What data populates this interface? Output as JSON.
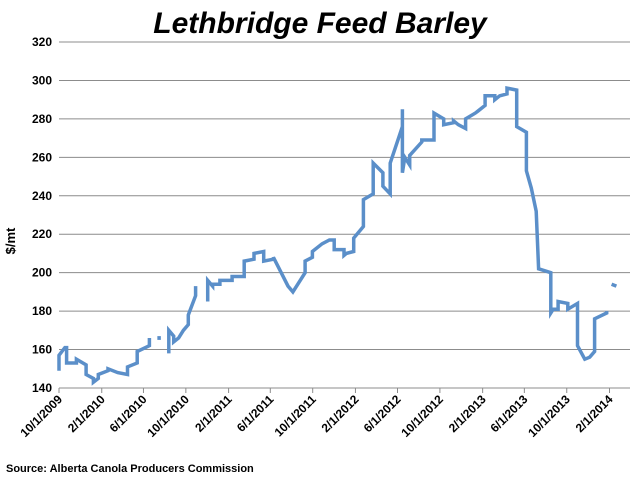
{
  "chart_data": {
    "type": "line",
    "title": "Lethbridge Feed Barley",
    "xlabel": "",
    "ylabel": "$/mt",
    "ylim": [
      140,
      320
    ],
    "yticks": [
      140,
      160,
      180,
      200,
      220,
      240,
      260,
      280,
      300,
      320
    ],
    "xlim": [
      "2009-10-01",
      "2014-04-01"
    ],
    "xticks": [
      {
        "label": "10/1/2009",
        "date": "2009-10-01"
      },
      {
        "label": "2/1/2010",
        "date": "2010-02-01"
      },
      {
        "label": "6/1/2010",
        "date": "2010-06-01"
      },
      {
        "label": "10/1/2010",
        "date": "2010-10-01"
      },
      {
        "label": "2/1/2011",
        "date": "2011-02-01"
      },
      {
        "label": "6/1/2011",
        "date": "2011-06-01"
      },
      {
        "label": "10/1/2011",
        "date": "2011-10-01"
      },
      {
        "label": "2/1/2012",
        "date": "2012-02-01"
      },
      {
        "label": "6/1/2012",
        "date": "2012-06-01"
      },
      {
        "label": "10/1/2012",
        "date": "2012-10-01"
      },
      {
        "label": "2/1/2013",
        "date": "2013-02-01"
      },
      {
        "label": "6/1/2013",
        "date": "2013-06-01"
      },
      {
        "label": "10/1/2013",
        "date": "2013-10-01"
      },
      {
        "label": "2/1/2014",
        "date": "2014-02-01"
      }
    ],
    "grid": true,
    "line_color": "#5b8fc9",
    "source": "Source: Alberta Canola Producers Commission",
    "series": [
      {
        "name": "Lethbridge Feed Barley",
        "segments": [
          [
            [
              "2009-10-01",
              149
            ],
            [
              "2009-10-01",
              157
            ],
            [
              "2009-10-18",
              161
            ],
            [
              "2009-10-23",
              161
            ],
            [
              "2009-10-23",
              153
            ],
            [
              "2009-11-20",
              153
            ],
            [
              "2009-11-20",
              155
            ],
            [
              "2009-12-18",
              152
            ],
            [
              "2009-12-18",
              147
            ],
            [
              "2010-01-08",
              145
            ],
            [
              "2010-01-08",
              143
            ],
            [
              "2010-01-22",
              145
            ],
            [
              "2010-01-22",
              147
            ],
            [
              "2010-02-19",
              149
            ],
            [
              "2010-02-19",
              150
            ],
            [
              "2010-03-19",
              148
            ],
            [
              "2010-04-16",
              147
            ],
            [
              "2010-04-16",
              151
            ],
            [
              "2010-05-14",
              153
            ],
            [
              "2010-05-14",
              159
            ],
            [
              "2010-06-18",
              162
            ],
            [
              "2010-06-18",
              166
            ]
          ],
          [
            [
              "2010-07-16",
              165
            ],
            [
              "2010-07-16",
              167
            ]
          ],
          [
            [
              "2010-08-13",
              158
            ],
            [
              "2010-08-13",
              170
            ],
            [
              "2010-08-27",
              167
            ],
            [
              "2010-08-27",
              164
            ],
            [
              "2010-09-10",
              166
            ],
            [
              "2010-09-24",
              170
            ],
            [
              "2010-10-08",
              173
            ],
            [
              "2010-10-08",
              178
            ],
            [
              "2010-10-29",
              188
            ],
            [
              "2010-10-29",
              193
            ]
          ],
          [
            [
              "2010-12-03",
              185
            ],
            [
              "2010-12-03",
              196
            ],
            [
              "2010-12-17",
              193
            ],
            [
              "2010-12-17",
              194
            ],
            [
              "2011-01-07",
              194
            ],
            [
              "2011-01-07",
              196
            ],
            [
              "2011-02-11",
              196
            ],
            [
              "2011-02-11",
              198
            ],
            [
              "2011-03-18",
              198
            ],
            [
              "2011-03-18",
              206
            ],
            [
              "2011-04-15",
              207
            ],
            [
              "2011-04-15",
              210
            ],
            [
              "2011-05-13",
              211
            ],
            [
              "2011-05-13",
              206
            ],
            [
              "2011-06-10",
              207
            ],
            [
              "2011-06-10",
              208
            ],
            [
              "2011-06-24",
              203
            ],
            [
              "2011-07-22",
              193
            ],
            [
              "2011-08-05",
              190
            ],
            [
              "2011-09-09",
              200
            ],
            [
              "2011-09-09",
              206
            ],
            [
              "2011-09-30",
              208
            ],
            [
              "2011-09-30",
              211
            ],
            [
              "2011-10-28",
              215
            ],
            [
              "2011-10-28",
              215
            ],
            [
              "2011-11-18",
              217
            ],
            [
              "2011-12-02",
              217
            ],
            [
              "2011-12-02",
              212
            ],
            [
              "2011-12-30",
              212
            ],
            [
              "2011-12-30",
              209
            ],
            [
              "2012-01-06",
              210
            ],
            [
              "2012-01-27",
              211
            ],
            [
              "2012-01-27",
              218
            ],
            [
              "2012-02-24",
              224
            ],
            [
              "2012-02-24",
              238
            ],
            [
              "2012-03-23",
              241
            ],
            [
              "2012-03-23",
              257
            ],
            [
              "2012-04-20",
              252
            ],
            [
              "2012-04-20",
              245
            ],
            [
              "2012-05-11",
              241
            ],
            [
              "2012-05-11",
              257
            ],
            [
              "2012-06-15",
              276
            ],
            [
              "2012-06-15",
              285
            ],
            [
              "2012-06-15",
              252
            ],
            [
              "2012-06-22",
              260
            ],
            [
              "2012-07-06",
              256
            ],
            [
              "2012-07-06",
              261
            ],
            [
              "2012-08-10",
              268
            ],
            [
              "2012-08-10",
              269
            ],
            [
              "2012-09-14",
              269
            ],
            [
              "2012-09-14",
              283
            ],
            [
              "2012-10-12",
              280
            ],
            [
              "2012-10-12",
              277
            ],
            [
              "2012-11-09",
              278
            ],
            [
              "2012-11-09",
              279
            ],
            [
              "2012-11-23",
              277
            ],
            [
              "2012-12-14",
              275
            ],
            [
              "2012-12-14",
              280
            ],
            [
              "2013-01-11",
              283
            ],
            [
              "2013-01-18",
              284
            ],
            [
              "2013-02-08",
              287
            ],
            [
              "2013-02-08",
              292
            ],
            [
              "2013-03-08",
              292
            ],
            [
              "2013-03-08",
              290
            ],
            [
              "2013-03-22",
              292
            ],
            [
              "2013-04-12",
              293
            ],
            [
              "2013-04-12",
              296
            ],
            [
              "2013-05-10",
              295
            ],
            [
              "2013-05-10",
              276
            ],
            [
              "2013-06-07",
              273
            ],
            [
              "2013-06-07",
              253
            ],
            [
              "2013-06-21",
              244
            ],
            [
              "2013-07-05",
              232
            ],
            [
              "2013-07-12",
              202
            ],
            [
              "2013-08-16",
              200
            ],
            [
              "2013-08-16",
              179
            ],
            [
              "2013-08-23",
              181
            ],
            [
              "2013-09-06",
              181
            ],
            [
              "2013-09-06",
              185
            ],
            [
              "2013-10-04",
              184
            ],
            [
              "2013-10-04",
              181
            ],
            [
              "2013-11-01",
              184
            ],
            [
              "2013-11-01",
              162
            ],
            [
              "2013-11-22",
              155
            ],
            [
              "2013-12-06",
              156
            ],
            [
              "2013-12-20",
              159
            ],
            [
              "2013-12-20",
              176
            ],
            [
              "2014-01-24",
              179
            ],
            [
              "2014-01-24",
              180
            ]
          ],
          [
            [
              "2014-02-07",
              194
            ],
            [
              "2014-02-21",
              193
            ]
          ]
        ]
      }
    ]
  }
}
